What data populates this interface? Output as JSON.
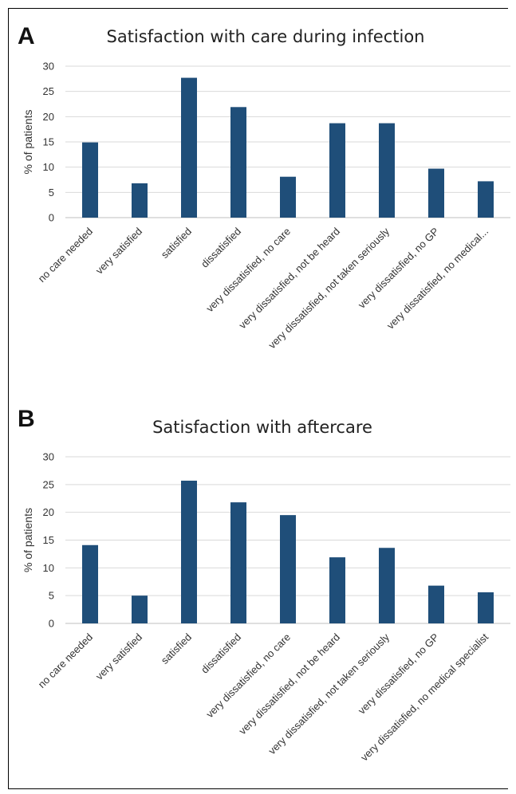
{
  "chart_data": [
    {
      "panel": "A",
      "type": "bar",
      "title": "Satisfaction with care during infection",
      "ylabel": "% of patients",
      "xlabel": "",
      "ylim": [
        0,
        30
      ],
      "yticks": [
        0,
        5,
        10,
        15,
        20,
        25,
        30
      ],
      "grid": true,
      "categories": [
        "no care needed",
        "very satisfied",
        "satisfied",
        "dissatisfied",
        "very dissatisfied, no care",
        "very dissatisfied, not be heard",
        "very dissatisfied, not taken seriously",
        "very dissatisfied, no GP",
        "very dissatisfied, no medical..."
      ],
      "values": [
        14.9,
        6.8,
        27.7,
        21.9,
        8.1,
        18.7,
        18.7,
        9.7,
        7.2
      ],
      "color": "#1f4e79"
    },
    {
      "panel": "B",
      "type": "bar",
      "title": "Satisfaction with aftercare",
      "ylabel": "% of patients",
      "xlabel": "",
      "ylim": [
        0,
        30
      ],
      "yticks": [
        0,
        5,
        10,
        15,
        20,
        25,
        30
      ],
      "grid": true,
      "categories": [
        "no care needed",
        "very satisfied",
        "satisfied",
        "dissatisfied",
        "very dissatisfied, no care",
        "very dissatisfied, not be heard",
        "very dissatisfied, not taken seriously",
        "very dissatisfied, no GP",
        "very dissatisfied, no medical specialist"
      ],
      "values": [
        14.1,
        5.0,
        25.7,
        21.8,
        19.5,
        11.9,
        13.6,
        6.8,
        5.6
      ],
      "color": "#1f4e79"
    }
  ]
}
